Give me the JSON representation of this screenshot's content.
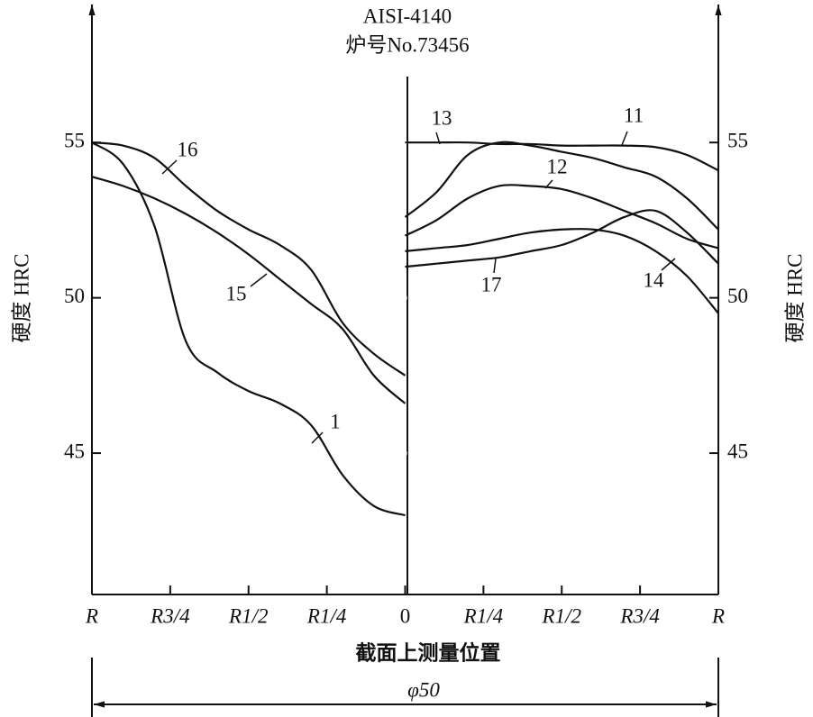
{
  "chart_data": {
    "type": "line",
    "title": "AISI-4140",
    "subtitle": "炉号No.73456",
    "y_label": "硬度  HRC",
    "x_label": "截面上测量位置",
    "dimension_label": "φ50",
    "xlim": [
      -1,
      1
    ],
    "xticks": [
      {
        "value": -1,
        "label": "R"
      },
      {
        "value": -0.75,
        "label": "R3/4"
      },
      {
        "value": -0.5,
        "label": "R1/2"
      },
      {
        "value": -0.25,
        "label": "R1/4"
      },
      0,
      {
        "value": 0.25,
        "label": "R1/4"
      },
      {
        "value": 0.5,
        "label": "R1/2"
      },
      {
        "value": 0.75,
        "label": "R3/4"
      },
      {
        "value": 1,
        "label": "R"
      }
    ],
    "ylim": [
      40.45,
      59.5
    ],
    "yticks": [
      45,
      50,
      55
    ],
    "color": "#111111",
    "series": [
      {
        "name": "1",
        "x": [
          -1,
          -0.9,
          -0.8,
          -0.7,
          -0.6,
          -0.5,
          -0.4,
          -0.3,
          -0.2,
          -0.1,
          0
        ],
        "values": [
          55.0,
          54.3,
          52.3,
          48.6,
          47.6,
          47.0,
          46.6,
          45.9,
          44.3,
          43.3,
          43.0
        ]
      },
      {
        "name": "15",
        "x": [
          -1,
          -0.9,
          -0.8,
          -0.7,
          -0.6,
          -0.5,
          -0.4,
          -0.3,
          -0.2,
          -0.1,
          0
        ],
        "values": [
          53.9,
          53.6,
          53.2,
          52.7,
          52.1,
          51.4,
          50.6,
          49.8,
          49.0,
          47.5,
          46.6
        ]
      },
      {
        "name": "16",
        "x": [
          -1,
          -0.9,
          -0.8,
          -0.7,
          -0.6,
          -0.5,
          -0.4,
          -0.3,
          -0.2,
          -0.1,
          0
        ],
        "values": [
          55.0,
          54.9,
          54.5,
          53.6,
          52.8,
          52.2,
          51.7,
          50.9,
          49.2,
          48.2,
          47.5
        ]
      },
      {
        "name": "13",
        "x": [
          0,
          0.1,
          0.2,
          0.3,
          0.4,
          0.5,
          0.6,
          0.7,
          0.8,
          0.9,
          1
        ],
        "values": [
          52.6,
          53.4,
          54.6,
          55.0,
          54.9,
          54.7,
          54.5,
          54.2,
          53.9,
          53.2,
          52.2
        ]
      },
      {
        "name": "11",
        "x": [
          0,
          0.1,
          0.2,
          0.3,
          0.4,
          0.5,
          0.6,
          0.7,
          0.8,
          0.9,
          1
        ],
        "values": [
          55.0,
          55.0,
          55.0,
          54.95,
          54.95,
          54.9,
          54.9,
          54.9,
          54.85,
          54.6,
          54.1
        ]
      },
      {
        "name": "12",
        "x": [
          0,
          0.1,
          0.2,
          0.3,
          0.4,
          0.5,
          0.6,
          0.7,
          0.8,
          0.9,
          1
        ],
        "values": [
          52.0,
          52.5,
          53.2,
          53.6,
          53.6,
          53.5,
          53.2,
          52.8,
          52.4,
          51.9,
          51.6
        ]
      },
      {
        "name": "14",
        "x": [
          0,
          0.1,
          0.2,
          0.3,
          0.4,
          0.5,
          0.6,
          0.7,
          0.8,
          0.9,
          1
        ],
        "values": [
          51.5,
          51.6,
          51.7,
          51.9,
          52.1,
          52.2,
          52.2,
          52.0,
          51.5,
          50.7,
          49.5
        ]
      },
      {
        "name": "17",
        "x": [
          0,
          0.1,
          0.2,
          0.3,
          0.4,
          0.5,
          0.6,
          0.7,
          0.8,
          0.9,
          1
        ],
        "values": [
          51.0,
          51.1,
          51.2,
          51.3,
          51.5,
          51.7,
          52.1,
          52.6,
          52.8,
          52.1,
          51.1
        ]
      }
    ]
  }
}
